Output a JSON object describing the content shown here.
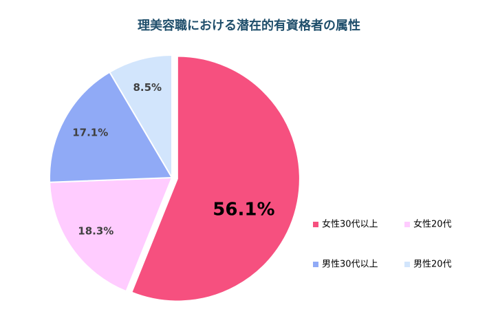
{
  "chart_data": {
    "type": "pie",
    "title": "理美容職における潜在的有資格者の属性",
    "categories": [
      "女性30代以上",
      "女性20代",
      "男性30代以上",
      "男性20代"
    ],
    "values": [
      56.1,
      18.3,
      17.1,
      8.5
    ],
    "value_labels": [
      "56.1%",
      "18.3%",
      "17.1%",
      "8.5%"
    ],
    "colors": [
      "#f6507f",
      "#ffccff",
      "#90aaf6",
      "#d2e5fc"
    ],
    "legend": "right"
  }
}
